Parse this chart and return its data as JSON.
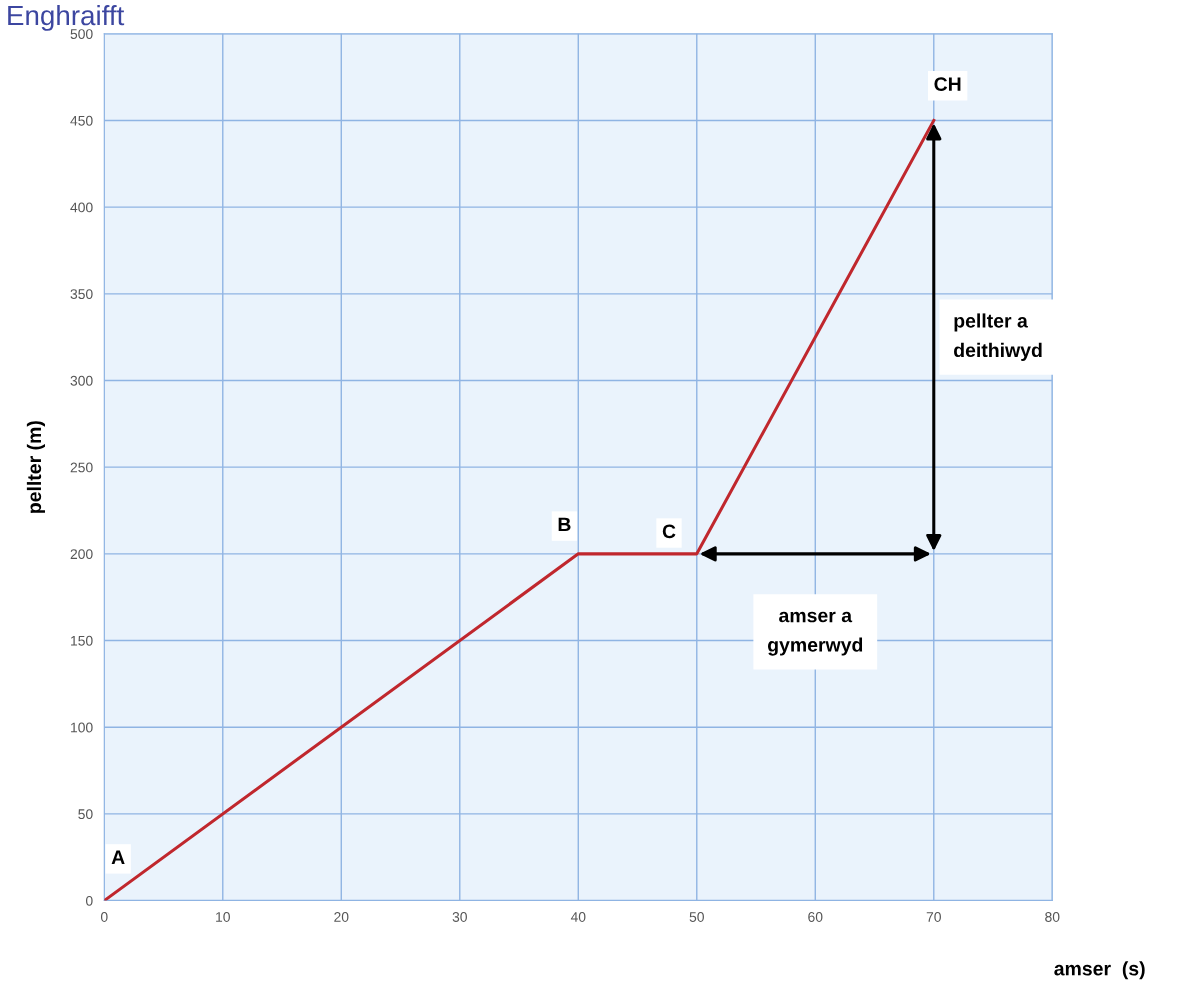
{
  "chart_data": {
    "type": "line",
    "title": "Enghraifft",
    "xlabel": "amser  (s)",
    "ylabel": "pellter (m)",
    "x": [
      0,
      40,
      50,
      70
    ],
    "series": [
      {
        "color": "#c0272d",
        "values": [
          0,
          200,
          200,
          450
        ]
      }
    ],
    "xlim": [
      0,
      80
    ],
    "xticks": [
      0,
      10,
      20,
      30,
      40,
      50,
      60,
      70,
      80
    ],
    "ylim": [
      0,
      500
    ],
    "yticks": [
      0,
      50,
      100,
      150,
      200,
      250,
      300,
      350,
      400,
      450,
      500
    ],
    "grid": true,
    "marker": "none",
    "line_style": "solid",
    "annotations": [
      {
        "text": "A",
        "x": 0,
        "y": 0
      },
      {
        "text": "B",
        "x": 40,
        "y": 200
      },
      {
        "text": "C",
        "x": 50,
        "y": 200
      },
      {
        "text": "CH",
        "x": 70,
        "y": 450
      },
      "amser a\ngymerwyd",
      "pellter a\ndeithiwyd"
    ]
  }
}
